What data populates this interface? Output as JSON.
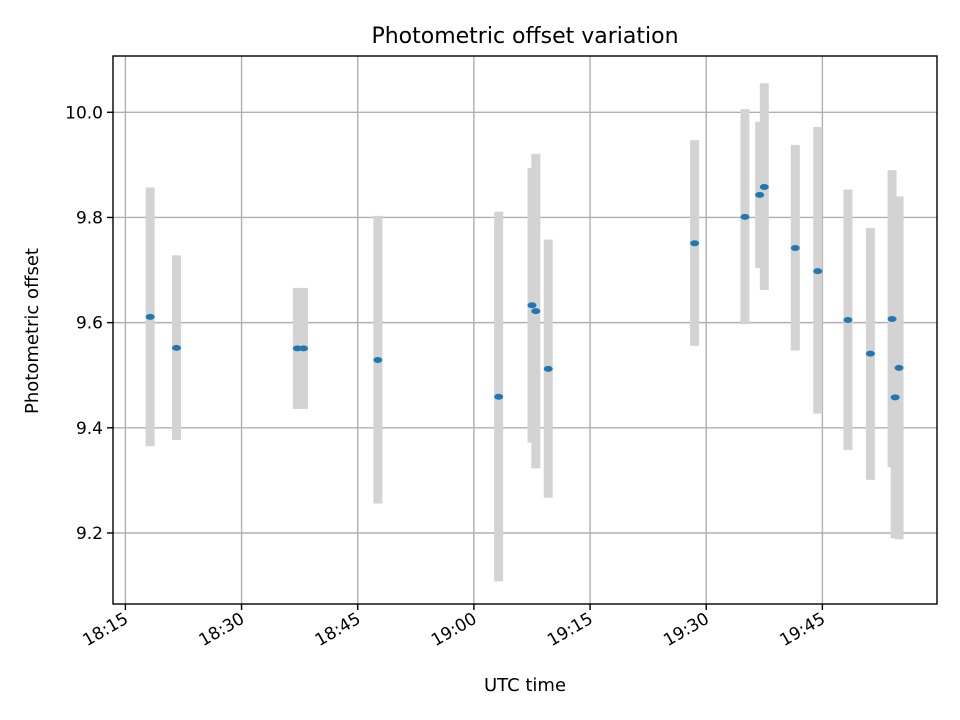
{
  "chart_data": {
    "type": "scatter",
    "title": "Photometric offset variation",
    "xlabel": "UTC time",
    "ylabel": "Photometric offset",
    "x_ticks": [
      "18:15",
      "18:30",
      "18:45",
      "19:00",
      "19:15",
      "19:30",
      "19:45"
    ],
    "y_ticks": [
      "9.2",
      "9.4",
      "9.6",
      "9.8",
      "10.0"
    ],
    "xlim": [
      "18:13.4",
      "19:59.8"
    ],
    "ylim": [
      9.065,
      10.107
    ],
    "grid": true,
    "colors": {
      "point": "#1f77b4",
      "errorbar": "#d3d3d3"
    },
    "series": [
      {
        "points": [
          {
            "x": "18:18.2",
            "y": 9.611,
            "y_low": 9.365,
            "y_high": 9.857
          },
          {
            "x": "18:21.6",
            "y": 9.552,
            "y_low": 9.377,
            "y_high": 9.728
          },
          {
            "x": "18:37.2",
            "y": 9.551,
            "y_low": 9.436,
            "y_high": 9.666
          },
          {
            "x": "18:38.0",
            "y": 9.551,
            "y_low": 9.436,
            "y_high": 9.666
          },
          {
            "x": "18:47.6",
            "y": 9.529,
            "y_low": 9.256,
            "y_high": 9.803
          },
          {
            "x": "19:03.2",
            "y": 9.459,
            "y_low": 9.108,
            "y_high": 9.811
          },
          {
            "x": "19:07.5",
            "y": 9.633,
            "y_low": 9.372,
            "y_high": 9.894
          },
          {
            "x": "19:08.0",
            "y": 9.622,
            "y_low": 9.323,
            "y_high": 9.921
          },
          {
            "x": "19:09.6",
            "y": 9.512,
            "y_low": 9.267,
            "y_high": 9.758
          },
          {
            "x": "19:28.5",
            "y": 9.751,
            "y_low": 9.556,
            "y_high": 9.947
          },
          {
            "x": "19:35.0",
            "y": 9.801,
            "y_low": 9.597,
            "y_high": 10.006
          },
          {
            "x": "19:36.9",
            "y": 9.843,
            "y_low": 9.704,
            "y_high": 9.982
          },
          {
            "x": "19:37.5",
            "y": 9.858,
            "y_low": 9.662,
            "y_high": 10.055
          },
          {
            "x": "19:41.5",
            "y": 9.742,
            "y_low": 9.547,
            "y_high": 9.938
          },
          {
            "x": "19:44.4",
            "y": 9.698,
            "y_low": 9.427,
            "y_high": 9.972
          },
          {
            "x": "19:48.3",
            "y": 9.605,
            "y_low": 9.358,
            "y_high": 9.853
          },
          {
            "x": "19:51.2",
            "y": 9.541,
            "y_low": 9.301,
            "y_high": 9.78
          },
          {
            "x": "19:54.0",
            "y": 9.607,
            "y_low": 9.325,
            "y_high": 9.89
          },
          {
            "x": "19:54.4",
            "y": 9.458,
            "y_low": 9.19,
            "y_high": 9.727
          },
          {
            "x": "19:54.9",
            "y": 9.514,
            "y_low": 9.188,
            "y_high": 9.84
          }
        ]
      }
    ]
  }
}
